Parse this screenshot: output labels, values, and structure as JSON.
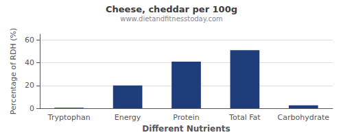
{
  "chart_data": {
    "type": "bar",
    "title": "Cheese, cheddar per 100g",
    "subtitle": "www.dietandfitnesstoday.com",
    "xlabel": "Different Nutrients",
    "ylabel": "Percentage of RDH (%)",
    "categories": [
      "Tryptophan",
      "Energy",
      "Protein",
      "Total Fat",
      "Carbohydrate"
    ],
    "values": [
      0.5,
      20,
      41,
      51,
      2.5
    ],
    "color": "#1f3d7a",
    "ylim": [
      0,
      65
    ],
    "yticks": [
      0,
      20,
      40,
      60
    ],
    "grid": true
  }
}
